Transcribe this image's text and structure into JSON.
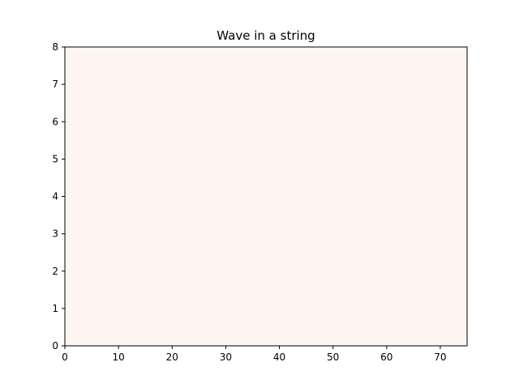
{
  "chart_data": {
    "type": "heatmap",
    "title": "Wave in a string",
    "xlabel": "",
    "ylabel": "",
    "xlim": [
      0,
      75
    ],
    "ylim": [
      0,
      8
    ],
    "xticks": [
      0,
      10,
      20,
      30,
      40,
      50,
      60,
      70
    ],
    "yticks": [
      0,
      1,
      2,
      3,
      4,
      5,
      6,
      7,
      8
    ],
    "grid": false,
    "legend": "none",
    "series": [],
    "plot_background_color": "#fdf5f0",
    "axis_color": "#000000"
  }
}
